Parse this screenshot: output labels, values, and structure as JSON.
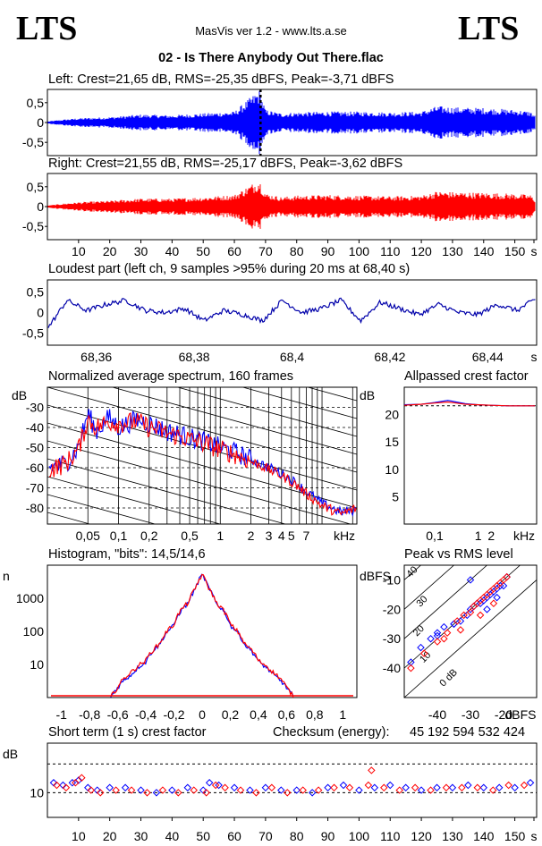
{
  "header": {
    "brand_left": "LTS",
    "brand_right": "LTS",
    "app_title": "MasVis ver 1.2 - www.lts.a.se",
    "file_title": "02 - Is There Anybody Out There.flac"
  },
  "colors": {
    "left": "#0000ff",
    "right": "#ff0000",
    "loudest": "#0000aa",
    "grid": "#000000"
  },
  "chart_data": [
    {
      "type": "area",
      "id": "left-waveform",
      "title": "Left: Crest=21,65 dB, RMS=-25,35 dBFS, Peak=-3,71 dBFS",
      "ylim": [
        -0.9,
        0.9
      ],
      "yticks": [
        "0,5",
        "0",
        "-0,5"
      ],
      "series": [
        {
          "name": "",
          "x": [
            0,
            5,
            10,
            20,
            30,
            40,
            50,
            60,
            68,
            70,
            75,
            80,
            90,
            100,
            110,
            120,
            125,
            130,
            140,
            150,
            155,
            157
          ],
          "values": [
            0.03,
            0.08,
            0.12,
            0.15,
            0.22,
            0.2,
            0.25,
            0.3,
            0.9,
            0.35,
            0.25,
            0.28,
            0.3,
            0.3,
            0.28,
            0.3,
            0.45,
            0.42,
            0.4,
            0.35,
            0.3,
            0.15
          ]
        }
      ],
      "marker_x": 68.4
    },
    {
      "type": "area",
      "id": "right-waveform",
      "title": "Right: Crest=21,55 dB, RMS=-25,17 dBFS, Peak=-3,62 dBFS",
      "ylim": [
        -0.9,
        0.9
      ],
      "yticks": [
        "0,5",
        "0",
        "-0,5"
      ],
      "xticks": [
        "10",
        "20",
        "30",
        "40",
        "50",
        "60",
        "70",
        "80",
        "90",
        "100",
        "110",
        "120",
        "130",
        "140",
        "150",
        "s"
      ],
      "xlim": [
        0,
        157
      ],
      "series": [
        {
          "name": "",
          "x": [
            0,
            5,
            10,
            20,
            30,
            40,
            50,
            60,
            68,
            70,
            75,
            80,
            90,
            100,
            110,
            120,
            125,
            130,
            140,
            150,
            155,
            157
          ],
          "values": [
            0.03,
            0.08,
            0.12,
            0.16,
            0.22,
            0.22,
            0.26,
            0.32,
            0.75,
            0.36,
            0.26,
            0.3,
            0.32,
            0.3,
            0.28,
            0.3,
            0.42,
            0.4,
            0.38,
            0.35,
            0.32,
            0.15
          ]
        }
      ]
    },
    {
      "type": "line",
      "id": "loudest-part",
      "title": "Loudest part (left  ch, 9 samples >95% during 20 ms at 68,40 s)",
      "xlim": [
        68.35,
        68.45
      ],
      "ylim": [
        -0.8,
        0.8
      ],
      "yticks": [
        "0,5",
        "0",
        "-0,5"
      ],
      "xticks": [
        "68,36",
        "68,38",
        "68,4",
        "68,42",
        "68,44",
        "s"
      ],
      "series": [
        {
          "name": "",
          "x": [
            68.35,
            68.354,
            68.358,
            68.362,
            68.366,
            68.37,
            68.374,
            68.378,
            68.382,
            68.386,
            68.39,
            68.394,
            68.398,
            68.402,
            68.406,
            68.41,
            68.414,
            68.418,
            68.422,
            68.426,
            68.43,
            68.434,
            68.438,
            68.442,
            68.446,
            68.45
          ],
          "values": [
            -0.4,
            0.3,
            0.05,
            0.2,
            0.3,
            0.05,
            0.0,
            0.1,
            -0.2,
            0.05,
            -0.05,
            -0.2,
            0.3,
            0.0,
            0.1,
            0.3,
            -0.2,
            0.25,
            0.1,
            -0.05,
            0.2,
            0.0,
            -0.05,
            0.2,
            0.05,
            0.35
          ]
        }
      ]
    },
    {
      "type": "line",
      "id": "average-spectrum",
      "title": "Normalized average spectrum, 160 frames",
      "ylabel": "dB",
      "ylim": [
        -88,
        -20
      ],
      "yticks": [
        "-30",
        "-40",
        "-50",
        "-60",
        "-70",
        "-80"
      ],
      "xticks": [
        "0,05",
        "0,1",
        "0,2",
        "0,5",
        "1",
        "2",
        "3",
        "4",
        "5",
        "7",
        "kHz"
      ],
      "xlim": [
        0.02,
        22
      ],
      "series": [
        {
          "name": "",
          "x": [
            0.02,
            0.03,
            0.04,
            0.05,
            0.06,
            0.08,
            0.1,
            0.15,
            0.2,
            0.3,
            0.5,
            0.7,
            1,
            1.5,
            2,
            3,
            4,
            5,
            7,
            10,
            15,
            22
          ],
          "values": [
            -60,
            -58,
            -50,
            -33,
            -42,
            -35,
            -40,
            -36,
            -38,
            -42,
            -45,
            -47,
            -50,
            -53,
            -56,
            -60,
            -63,
            -66,
            -72,
            -78,
            -82,
            -81
          ]
        },
        {
          "name": "",
          "x": [
            0.02,
            0.03,
            0.04,
            0.05,
            0.06,
            0.08,
            0.1,
            0.15,
            0.2,
            0.3,
            0.5,
            0.7,
            1,
            1.5,
            2,
            3,
            4,
            5,
            7,
            10,
            15,
            22
          ],
          "values": [
            -61,
            -58,
            -51,
            -36,
            -40,
            -37,
            -38,
            -37,
            -40,
            -43,
            -46,
            -48,
            -51,
            -54,
            -57,
            -61,
            -64,
            -67,
            -73,
            -79,
            -83,
            -80
          ]
        }
      ]
    },
    {
      "type": "line",
      "id": "allpassed-crest",
      "title": "Allpassed crest factor",
      "ylabel": "dB",
      "ylim": [
        0,
        25
      ],
      "yticks": [
        "20",
        "15",
        "10",
        "5"
      ],
      "xticks": [
        "0,1",
        "1",
        "2",
        "kHz"
      ],
      "reference_db": 21.6,
      "series": [
        {
          "name": "",
          "x": [
            0.02,
            0.05,
            0.1,
            0.2,
            0.5,
            1,
            2,
            5,
            10,
            20
          ],
          "values": [
            21.8,
            21.9,
            22.2,
            22.6,
            22.0,
            21.8,
            21.7,
            21.6,
            21.6,
            21.6
          ]
        },
        {
          "name": "",
          "x": [
            0.02,
            0.05,
            0.1,
            0.2,
            0.5,
            1,
            2,
            5,
            10,
            20
          ],
          "values": [
            21.7,
            21.9,
            22.1,
            22.3,
            21.9,
            21.8,
            21.7,
            21.6,
            21.6,
            21.6
          ]
        }
      ]
    },
    {
      "type": "line",
      "id": "histogram",
      "title": "Histogram, \"bits\": 14,5/14,6",
      "ylabel": "n",
      "yticks": [
        "1000",
        "100",
        "10"
      ],
      "xticks": [
        "-1",
        "-0,8",
        "-0,6",
        "-0,4",
        "-0,2",
        "0",
        "0,2",
        "0,4",
        "0,6",
        "0,8",
        "1"
      ],
      "xlim": [
        -1.1,
        1.1
      ],
      "ylim_log10": [
        0,
        4
      ],
      "series": [
        {
          "name": "",
          "x": [
            -0.65,
            -0.6,
            -0.5,
            -0.4,
            -0.3,
            -0.2,
            -0.1,
            -0.05,
            0,
            0.05,
            0.1,
            0.2,
            0.3,
            0.4,
            0.5,
            0.6,
            0.65
          ],
          "values": [
            1,
            2,
            5,
            12,
            40,
            150,
            700,
            1800,
            5000,
            1800,
            700,
            150,
            40,
            12,
            5,
            2,
            1
          ]
        },
        {
          "name": "",
          "x": [
            -0.65,
            -0.6,
            -0.5,
            -0.4,
            -0.3,
            -0.2,
            -0.1,
            -0.05,
            0,
            0.05,
            0.1,
            0.2,
            0.3,
            0.4,
            0.5,
            0.6,
            0.65
          ],
          "values": [
            1,
            2,
            6,
            13,
            42,
            160,
            720,
            1850,
            5000,
            1850,
            720,
            160,
            42,
            13,
            6,
            2,
            1
          ]
        }
      ]
    },
    {
      "type": "scatter",
      "id": "peak-vs-rms",
      "title": "Peak vs RMS level",
      "ylabel": "dBFS",
      "xlabel": "dBFS",
      "xlim": [
        -50,
        -10
      ],
      "ylim": [
        -50,
        -5
      ],
      "yticks": [
        "-10",
        "-20",
        "-30",
        "-40"
      ],
      "xticks": [
        "-40",
        "-30",
        "-20"
      ],
      "diagonals": [
        "40",
        "30",
        "20",
        "10",
        "0 dB"
      ],
      "series": [
        {
          "name": "",
          "x": [
            -48,
            -45,
            -42,
            -40,
            -38,
            -35,
            -33,
            -31,
            -30,
            -29,
            -28,
            -27,
            -26,
            -25,
            -24,
            -23,
            -22,
            -21,
            -20,
            -19,
            -30,
            -25,
            -22,
            -35,
            -40
          ],
          "values": [
            -38,
            -33,
            -30,
            -28,
            -26,
            -25,
            -24,
            -22,
            -20,
            -19,
            -18,
            -18,
            -17,
            -16,
            -15,
            -14,
            -13,
            -12,
            -12,
            -9,
            -10,
            -20,
            -16,
            -25,
            -29
          ]
        },
        {
          "name": "",
          "x": [
            -48,
            -44,
            -40,
            -37,
            -34,
            -32,
            -30,
            -29,
            -28,
            -27,
            -26,
            -25,
            -24,
            -23,
            -22,
            -21,
            -20,
            -19,
            -33,
            -27,
            -23,
            -38
          ],
          "values": [
            -40,
            -35,
            -31,
            -28,
            -24,
            -22,
            -21,
            -19,
            -18,
            -17,
            -16,
            -15,
            -14,
            -13,
            -12,
            -11,
            -10,
            -9,
            -27,
            -22,
            -18,
            -30
          ]
        }
      ]
    },
    {
      "type": "scatter",
      "id": "short-term-crest",
      "title": "Short term (1 s) crest factor",
      "ylabel": "dB",
      "xlim": [
        0,
        157
      ],
      "ylim": [
        0,
        30
      ],
      "ytick_value": 10,
      "yticks": [
        "10"
      ],
      "xticks": [
        "10",
        "20",
        "30",
        "40",
        "50",
        "60",
        "70",
        "80",
        "90",
        "100",
        "110",
        "120",
        "130",
        "140",
        "150",
        "s"
      ],
      "reference_db": 21.6,
      "series": [
        {
          "name": "",
          "x": [
            2,
            5,
            8,
            10,
            13,
            16,
            20,
            25,
            30,
            35,
            40,
            45,
            50,
            52,
            55,
            60,
            65,
            70,
            75,
            80,
            85,
            90,
            95,
            100,
            105,
            110,
            115,
            120,
            125,
            130,
            135,
            140,
            145,
            150,
            155
          ],
          "values": [
            14,
            13,
            14,
            15,
            12,
            11,
            12,
            12,
            11,
            10,
            11,
            12,
            11,
            14,
            13,
            12,
            11,
            12,
            11,
            11,
            10,
            12,
            13,
            11,
            12,
            13,
            12,
            11,
            12,
            12,
            13,
            12,
            12,
            12,
            14
          ]
        },
        {
          "name": "",
          "x": [
            3,
            6,
            9,
            11,
            14,
            17,
            22,
            27,
            32,
            37,
            42,
            47,
            51,
            54,
            57,
            62,
            67,
            72,
            77,
            82,
            87,
            92,
            97,
            103,
            104,
            108,
            113,
            118,
            123,
            128,
            133,
            138,
            143,
            148,
            153
          ],
          "values": [
            13,
            12,
            14,
            16,
            11,
            10,
            11,
            11,
            10,
            11,
            10,
            11,
            10,
            13,
            12,
            11,
            10,
            12,
            10,
            11,
            11,
            12,
            12,
            13,
            19,
            12,
            11,
            12,
            11,
            12,
            12,
            12,
            11,
            13,
            13
          ]
        }
      ]
    }
  ],
  "checksum": {
    "label": "Checksum (energy):",
    "value": "45 192 594 532 424"
  }
}
